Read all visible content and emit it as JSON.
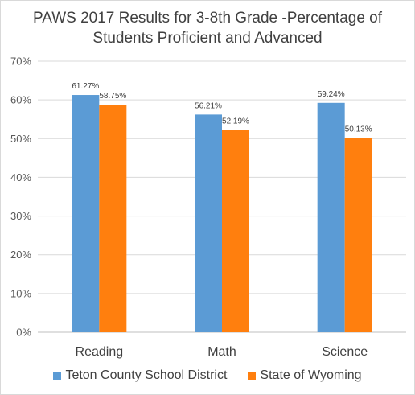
{
  "chart_data": {
    "type": "bar",
    "title": [
      "PAWS 2017 Results for 3-8th Grade -Percentage of",
      "Students Proficient and Advanced"
    ],
    "categories": [
      "Reading",
      "Math",
      "Science"
    ],
    "series": [
      {
        "name": "Teton County School District",
        "color": "#5b9bd5",
        "values": [
          61.27,
          56.21,
          59.24
        ],
        "labels": [
          "61.27%",
          "56.21%",
          "59.24%"
        ]
      },
      {
        "name": "State of Wyoming",
        "color": "#ff7f0e",
        "values": [
          58.75,
          52.19,
          50.13
        ],
        "labels": [
          "58.75%",
          "52.19%",
          "50.13%"
        ]
      }
    ],
    "ylim": [
      0,
      70
    ],
    "yticks": [
      0,
      10,
      20,
      30,
      40,
      50,
      60,
      70
    ],
    "ytick_labels": [
      "0%",
      "10%",
      "20%",
      "30%",
      "40%",
      "50%",
      "60%",
      "70%"
    ],
    "grid": true,
    "legend": "bottom"
  }
}
